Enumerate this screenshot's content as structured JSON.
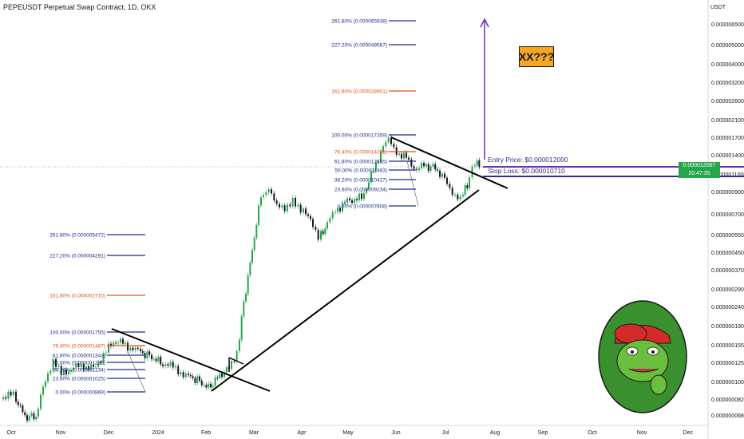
{
  "title": "PEPEUSDT Perpetual Swap Contract, 1D, OKX",
  "currency": "USDT",
  "price_axis": [
    "0.0000065000",
    "0.0000050000",
    "0.0000040000",
    "0.0000032000",
    "0.0000026000",
    "0.0000021000",
    "0.0000017000",
    "0.0000014000",
    "0.0000011000",
    "0.0000009000",
    "0.0000007000",
    "0.0000005500",
    "0.0000004500",
    "0.0000003700",
    "0.0000002900",
    "0.0000002400",
    "0.0000001900",
    "0.0000001550",
    "0.0000001250",
    "0.0000001000",
    "0.0000000820",
    "0.0000000680"
  ],
  "time_axis": [
    "Oct",
    "Nov",
    "Dec",
    "2024",
    "Feb",
    "Mar",
    "Apr",
    "May",
    "Jun",
    "Jul",
    "Aug",
    "Sep",
    "Oct",
    "Nov",
    "Dec"
  ],
  "fib_right": [
    {
      "label": "261.80% (0.000065938)",
      "color": "#1e2a8a"
    },
    {
      "label": "227.20% (0.000049567)",
      "color": "#1e2a8a"
    },
    {
      "label": "161.80% (0.000028901)",
      "color": "#e0501c"
    },
    {
      "label": "100.00% (0.000017359)",
      "color": "#1e2a8a"
    },
    {
      "label": "76.40% (0.000014261)",
      "color": "#e0501c"
    },
    {
      "label": "61.80% (0.000012655)",
      "color": "#1e2a8a"
    },
    {
      "label": "50.00% (0.000011483)",
      "color": "#1e2a8a"
    },
    {
      "label": "38.20% (0.000010427)",
      "color": "#1e2a8a"
    },
    {
      "label": "23.60% (0.000009234)",
      "color": "#1e2a8a"
    },
    {
      "label": "0.00% (0.000007608)",
      "color": "#1e2a8a"
    }
  ],
  "fib_left": [
    {
      "label": "261.80% (0.000005472)",
      "color": "#1e2a8a"
    },
    {
      "label": "227.20% (0.000004291)",
      "color": "#1e2a8a"
    },
    {
      "label": "161.80% (0.000002710)",
      "color": "#e0501c"
    },
    {
      "label": "100.00% (0.000001755)",
      "color": "#1e2a8a"
    },
    {
      "label": "76.40% (0.000001487)",
      "color": "#e0501c"
    },
    {
      "label": "61.80% (0.000001343)",
      "color": "#1e2a8a"
    },
    {
      "label": "50.00% (0.000001235)",
      "color": "#1e2a8a"
    },
    {
      "label": "38.20% (0.000001134)",
      "color": "#1e2a8a"
    },
    {
      "label": "23.60% (0.000001025)",
      "color": "#1e2a8a"
    },
    {
      "label": "0.00% (0.000000869)",
      "color": "#1e2a8a"
    }
  ],
  "annotation": "XX???",
  "entry_price": "Entry Price: $0.000012000",
  "stop_loss": "Stop Loss: $0.000010710",
  "price_tag": "0.000012067",
  "countdown": "20:47:35",
  "symbol_tag": "PEPEUSDT.P",
  "colors": {
    "up": "#26a64a",
    "down": "#131722",
    "entry_line": "#6a2fbf",
    "fib_blue": "#1e2a8a",
    "fib_orange": "#e0501c",
    "trendline": "#000000"
  }
}
